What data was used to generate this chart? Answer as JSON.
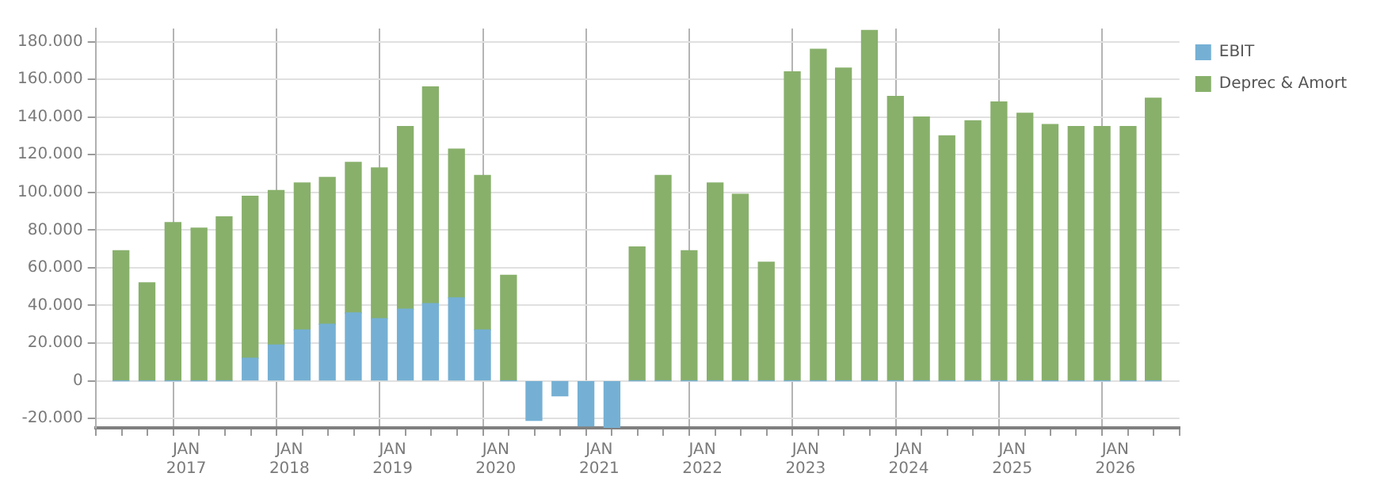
{
  "chart_data": {
    "type": "bar",
    "stacked": true,
    "x": [
      "2016-05-15",
      "2016-08-15",
      "2016-11-15",
      "2017-02-15",
      "2017-05-15",
      "2017-08-15",
      "2017-11-15",
      "2018-02-15",
      "2018-05-15",
      "2018-08-15",
      "2018-11-15",
      "2019-02-15",
      "2019-05-15",
      "2019-08-15",
      "2019-11-15",
      "2020-02-15",
      "2020-05-15",
      "2020-08-15",
      "2020-11-15",
      "2021-02-15",
      "2021-05-15",
      "2021-08-15",
      "2021-11-15",
      "2022-02-15",
      "2022-05-15",
      "2022-08-15",
      "2022-11-15",
      "2023-02-15",
      "2023-05-15",
      "2023-08-15",
      "2023-11-15",
      "2024-02-15",
      "2024-05-15",
      "2024-08-15",
      "2024-11-15",
      "2025-02-15",
      "2025-05-15",
      "2025-08-15",
      "2025-11-15",
      "2026-02-15",
      "2026-05-15"
    ],
    "series": [
      {
        "name": "EBIT",
        "color": "#75b0d4",
        "values": [
          0,
          0,
          0,
          0,
          0,
          12000,
          19000,
          27000,
          30000,
          36000,
          33000,
          38000,
          41000,
          44000,
          27000,
          0,
          -21000,
          -8000,
          -24000,
          -25000,
          0,
          0,
          0,
          0,
          0,
          0,
          0,
          0,
          0,
          0,
          0,
          0,
          0,
          0,
          0,
          0,
          0,
          0,
          0,
          0,
          0
        ]
      },
      {
        "name": "Deprec & Amort",
        "color": "#88b06b",
        "values": [
          69000,
          52000,
          84000,
          81000,
          87000,
          86000,
          82000,
          78000,
          78000,
          80000,
          80000,
          97000,
          115000,
          79000,
          82000,
          56000,
          null,
          null,
          null,
          null,
          71000,
          109000,
          69000,
          105000,
          99000,
          63000,
          164000,
          176000,
          166000,
          186000,
          151000,
          140000,
          130000,
          138000,
          148000,
          142000,
          136000,
          135000,
          135000,
          135000,
          150000
        ]
      }
    ],
    "xlim": [
      "2016-04",
      "2026-07"
    ],
    "xticks": [
      {
        "value": "2017-01",
        "label": "JAN\n2017"
      },
      {
        "value": "2018-01",
        "label": "JAN\n2018"
      },
      {
        "value": "2019-01",
        "label": "JAN\n2019"
      },
      {
        "value": "2020-01",
        "label": "JAN\n2020"
      },
      {
        "value": "2021-01",
        "label": "JAN\n2021"
      },
      {
        "value": "2022-01",
        "label": "JAN\n2022"
      },
      {
        "value": "2023-01",
        "label": "JAN\n2023"
      },
      {
        "value": "2024-01",
        "label": "JAN\n2024"
      },
      {
        "value": "2025-01",
        "label": "JAN\n2025"
      },
      {
        "value": "2026-01",
        "label": "JAN\n2026"
      }
    ],
    "ylim": [
      -25000,
      187000
    ],
    "yticks": [
      {
        "value": -20000,
        "label": "-20.000"
      },
      0,
      {
        "value": 20000,
        "label": "20.000"
      },
      {
        "value": 40000,
        "label": "40.000"
      },
      {
        "value": 60000,
        "label": "60.000"
      },
      {
        "value": 80000,
        "label": "80.000"
      },
      {
        "value": 100000,
        "label": "100.000"
      },
      {
        "value": 120000,
        "label": "120.000"
      },
      {
        "value": 140000,
        "label": "140.000"
      },
      {
        "value": 160000,
        "label": "160.000"
      },
      {
        "value": 180000,
        "label": "180.000"
      }
    ],
    "grid": true,
    "legend": "top right"
  }
}
